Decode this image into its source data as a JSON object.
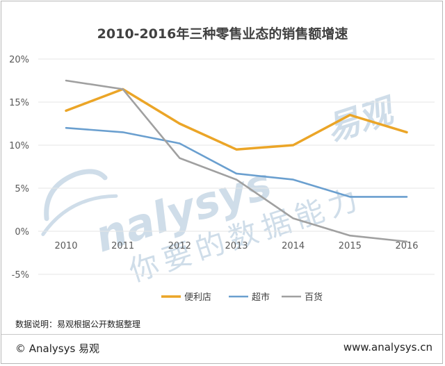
{
  "chart_data": {
    "type": "line",
    "title": "2010-2016年三种零售业态的销售额增速",
    "categories": [
      "2010",
      "2011",
      "2012",
      "2013",
      "2014",
      "2015",
      "2016"
    ],
    "y_ticks": [
      "20%",
      "15%",
      "10%",
      "5%",
      "0%",
      "-5%"
    ],
    "y_tick_values": [
      20,
      15,
      10,
      5,
      0,
      -5
    ],
    "ylim": [
      -5,
      20
    ],
    "grid": true,
    "legend_position": "bottom",
    "series": [
      {
        "name": "便利店",
        "color": "#eba527",
        "values": [
          14.0,
          16.5,
          12.5,
          9.5,
          10.0,
          13.5,
          11.5
        ]
      },
      {
        "name": "超市",
        "color": "#6a9fcf",
        "values": [
          12.0,
          11.5,
          10.2,
          6.7,
          6.0,
          4.0,
          4.0
        ]
      },
      {
        "name": "百货",
        "color": "#a0a0a0",
        "values": [
          17.5,
          16.5,
          8.5,
          6.0,
          1.5,
          -0.5,
          -1.2
        ]
      }
    ]
  },
  "watermark": {
    "brand": "nalysys",
    "brand_cn": "易观",
    "slogan": "你要的数据能力"
  },
  "footer": {
    "note": "数据说明：易观根据公开数据整理",
    "copyright": "© Analysys 易观",
    "website": "www.analysys.cn"
  },
  "colors": {
    "grid": "#e6e6e6",
    "watermark": "#cfdde9"
  }
}
